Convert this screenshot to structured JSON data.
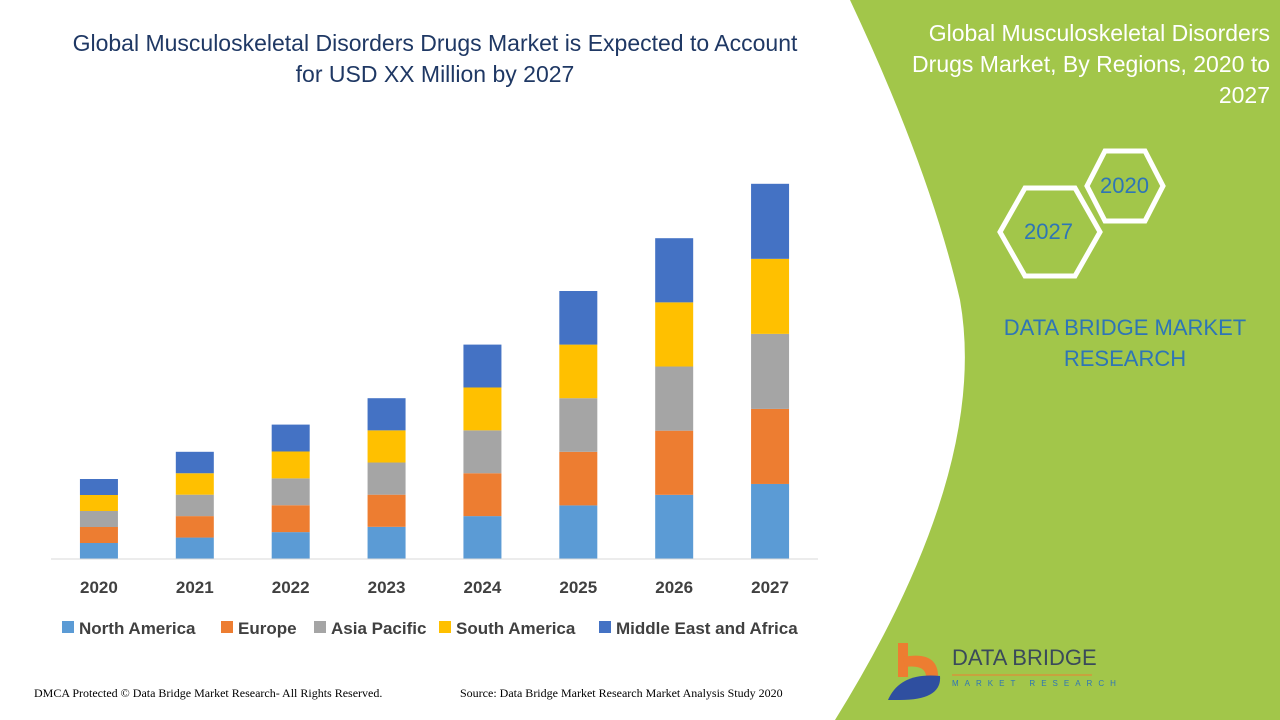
{
  "header": {
    "title": "Global Musculoskeletal Disorders Drugs Market is Expected to Account for USD XX Million by 2027"
  },
  "side_panel": {
    "title": "Global Musculoskeletal Disorders Drugs Market, By Regions, 2020 to 2027",
    "hex_labels": [
      "2020",
      "2027"
    ],
    "brand": "DATA BRIDGE MARKET RESEARCH",
    "logo_text": "DATA BRIDGE",
    "logo_subtext": "MARKET RESEARCH",
    "color": "#a2c64a"
  },
  "footer": {
    "copyright": "DMCA Protected © Data Bridge Market Research- All Rights Reserved.",
    "source": "Source: Data Bridge Market Research Market Analysis Study 2020"
  },
  "chart_data": {
    "type": "bar",
    "stacked": true,
    "categories": [
      "2020",
      "2021",
      "2022",
      "2023",
      "2024",
      "2025",
      "2026",
      "2027"
    ],
    "series": [
      {
        "name": "North America",
        "color": "#5b9bd5",
        "values": [
          1.0,
          1.34,
          1.68,
          2.01,
          2.68,
          3.35,
          4.01,
          4.69
        ]
      },
      {
        "name": "Europe",
        "color": "#ed7d31",
        "values": [
          1.0,
          1.34,
          1.68,
          2.01,
          2.68,
          3.35,
          4.01,
          4.69
        ]
      },
      {
        "name": "Asia Pacific",
        "color": "#a5a5a5",
        "values": [
          1.0,
          1.34,
          1.68,
          2.01,
          2.68,
          3.35,
          4.01,
          4.69
        ]
      },
      {
        "name": "South America",
        "color": "#ffc000",
        "values": [
          1.0,
          1.34,
          1.68,
          2.01,
          2.68,
          3.35,
          4.01,
          4.69
        ]
      },
      {
        "name": "Middle East and Africa",
        "color": "#4472c4",
        "values": [
          1.0,
          1.34,
          1.68,
          2.01,
          2.68,
          3.35,
          4.01,
          4.69
        ]
      }
    ],
    "ylim": [
      0,
      24
    ],
    "y_axis_shown": false,
    "grid": false,
    "legend": "bottom"
  }
}
